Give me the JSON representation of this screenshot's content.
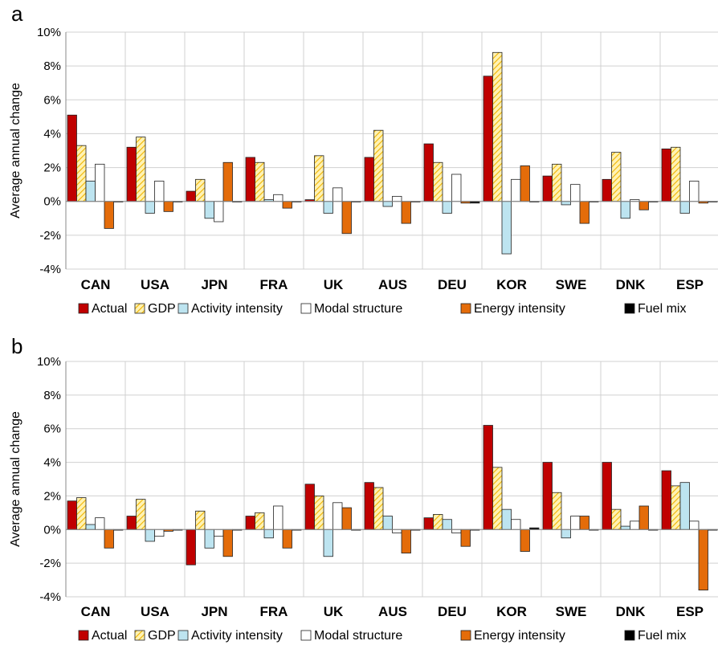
{
  "chart_data": [
    {
      "type": "bar",
      "panel": "a",
      "ylabel": "Average annual change",
      "ylim": [
        -4,
        10
      ],
      "yticks": [
        "-4%",
        "-2%",
        "0%",
        "2%",
        "4%",
        "6%",
        "8%",
        "10%"
      ],
      "grid": true,
      "legend_position": "bottom",
      "categories": [
        "CAN",
        "USA",
        "JPN",
        "FRA",
        "UK",
        "AUS",
        "DEU",
        "KOR",
        "SWE",
        "DNK",
        "ESP"
      ],
      "series": [
        {
          "name": "Actual",
          "color": "#c00000",
          "values": [
            5.1,
            3.2,
            0.6,
            2.6,
            0.1,
            2.6,
            3.4,
            7.4,
            1.5,
            1.3,
            3.1
          ]
        },
        {
          "name": "GDP",
          "color": "#ffe699",
          "values": [
            3.3,
            3.8,
            1.3,
            2.3,
            2.7,
            4.2,
            2.3,
            8.8,
            2.2,
            2.9,
            3.2
          ]
        },
        {
          "name": "Activity intensity",
          "color": "#bde4f0",
          "values": [
            1.2,
            -0.7,
            -1.0,
            0.1,
            -0.7,
            -0.3,
            -0.7,
            -3.1,
            -0.2,
            -1.0,
            -0.7
          ]
        },
        {
          "name": "Modal structure",
          "color": "#ffffff",
          "values": [
            2.2,
            1.2,
            -1.2,
            0.4,
            0.8,
            0.3,
            1.6,
            1.3,
            1.0,
            0.1,
            1.2
          ]
        },
        {
          "name": "Energy intensity",
          "color": "#e46c0a",
          "values": [
            -1.6,
            -0.6,
            2.3,
            -0.4,
            -1.9,
            -1.3,
            -0.1,
            2.1,
            -1.3,
            -0.5,
            -0.1
          ]
        },
        {
          "name": "Fuel mix",
          "color": "#000000",
          "values": [
            0.0,
            0.0,
            0.0,
            0.0,
            0.0,
            0.0,
            -0.1,
            0.0,
            0.0,
            0.0,
            0.0
          ]
        }
      ]
    },
    {
      "type": "bar",
      "panel": "b",
      "ylabel": "Average annual change",
      "ylim": [
        -4,
        10
      ],
      "yticks": [
        "-4%",
        "-2%",
        "0%",
        "2%",
        "4%",
        "6%",
        "8%",
        "10%"
      ],
      "grid": true,
      "legend_position": "bottom",
      "categories": [
        "CAN",
        "USA",
        "JPN",
        "FRA",
        "UK",
        "AUS",
        "DEU",
        "KOR",
        "SWE",
        "DNK",
        "ESP"
      ],
      "series": [
        {
          "name": "Actual",
          "color": "#c00000",
          "values": [
            1.7,
            0.8,
            -2.1,
            0.8,
            2.7,
            2.8,
            0.7,
            6.2,
            4.0,
            4.0,
            3.5
          ]
        },
        {
          "name": "GDP",
          "color": "#ffe699",
          "values": [
            1.9,
            1.8,
            1.1,
            1.0,
            2.0,
            2.5,
            0.9,
            3.7,
            2.2,
            1.2,
            2.6
          ]
        },
        {
          "name": "Activity intensity",
          "color": "#bde4f0",
          "values": [
            0.3,
            -0.7,
            -1.1,
            -0.5,
            -1.6,
            0.8,
            0.6,
            1.2,
            -0.5,
            0.2,
            2.8
          ]
        },
        {
          "name": "Modal structure",
          "color": "#ffffff",
          "values": [
            0.7,
            -0.4,
            -0.4,
            1.4,
            1.6,
            -0.2,
            -0.2,
            0.6,
            0.8,
            0.5,
            0.5
          ]
        },
        {
          "name": "Energy intensity",
          "color": "#e46c0a",
          "values": [
            -1.1,
            -0.1,
            -1.6,
            -1.1,
            1.3,
            -1.4,
            -1.0,
            -1.3,
            0.8,
            1.4,
            -3.6
          ]
        },
        {
          "name": "Fuel mix",
          "color": "#000000",
          "values": [
            0.0,
            0.0,
            0.0,
            0.0,
            0.0,
            0.0,
            0.0,
            0.1,
            0.0,
            0.0,
            0.0
          ]
        }
      ]
    }
  ]
}
